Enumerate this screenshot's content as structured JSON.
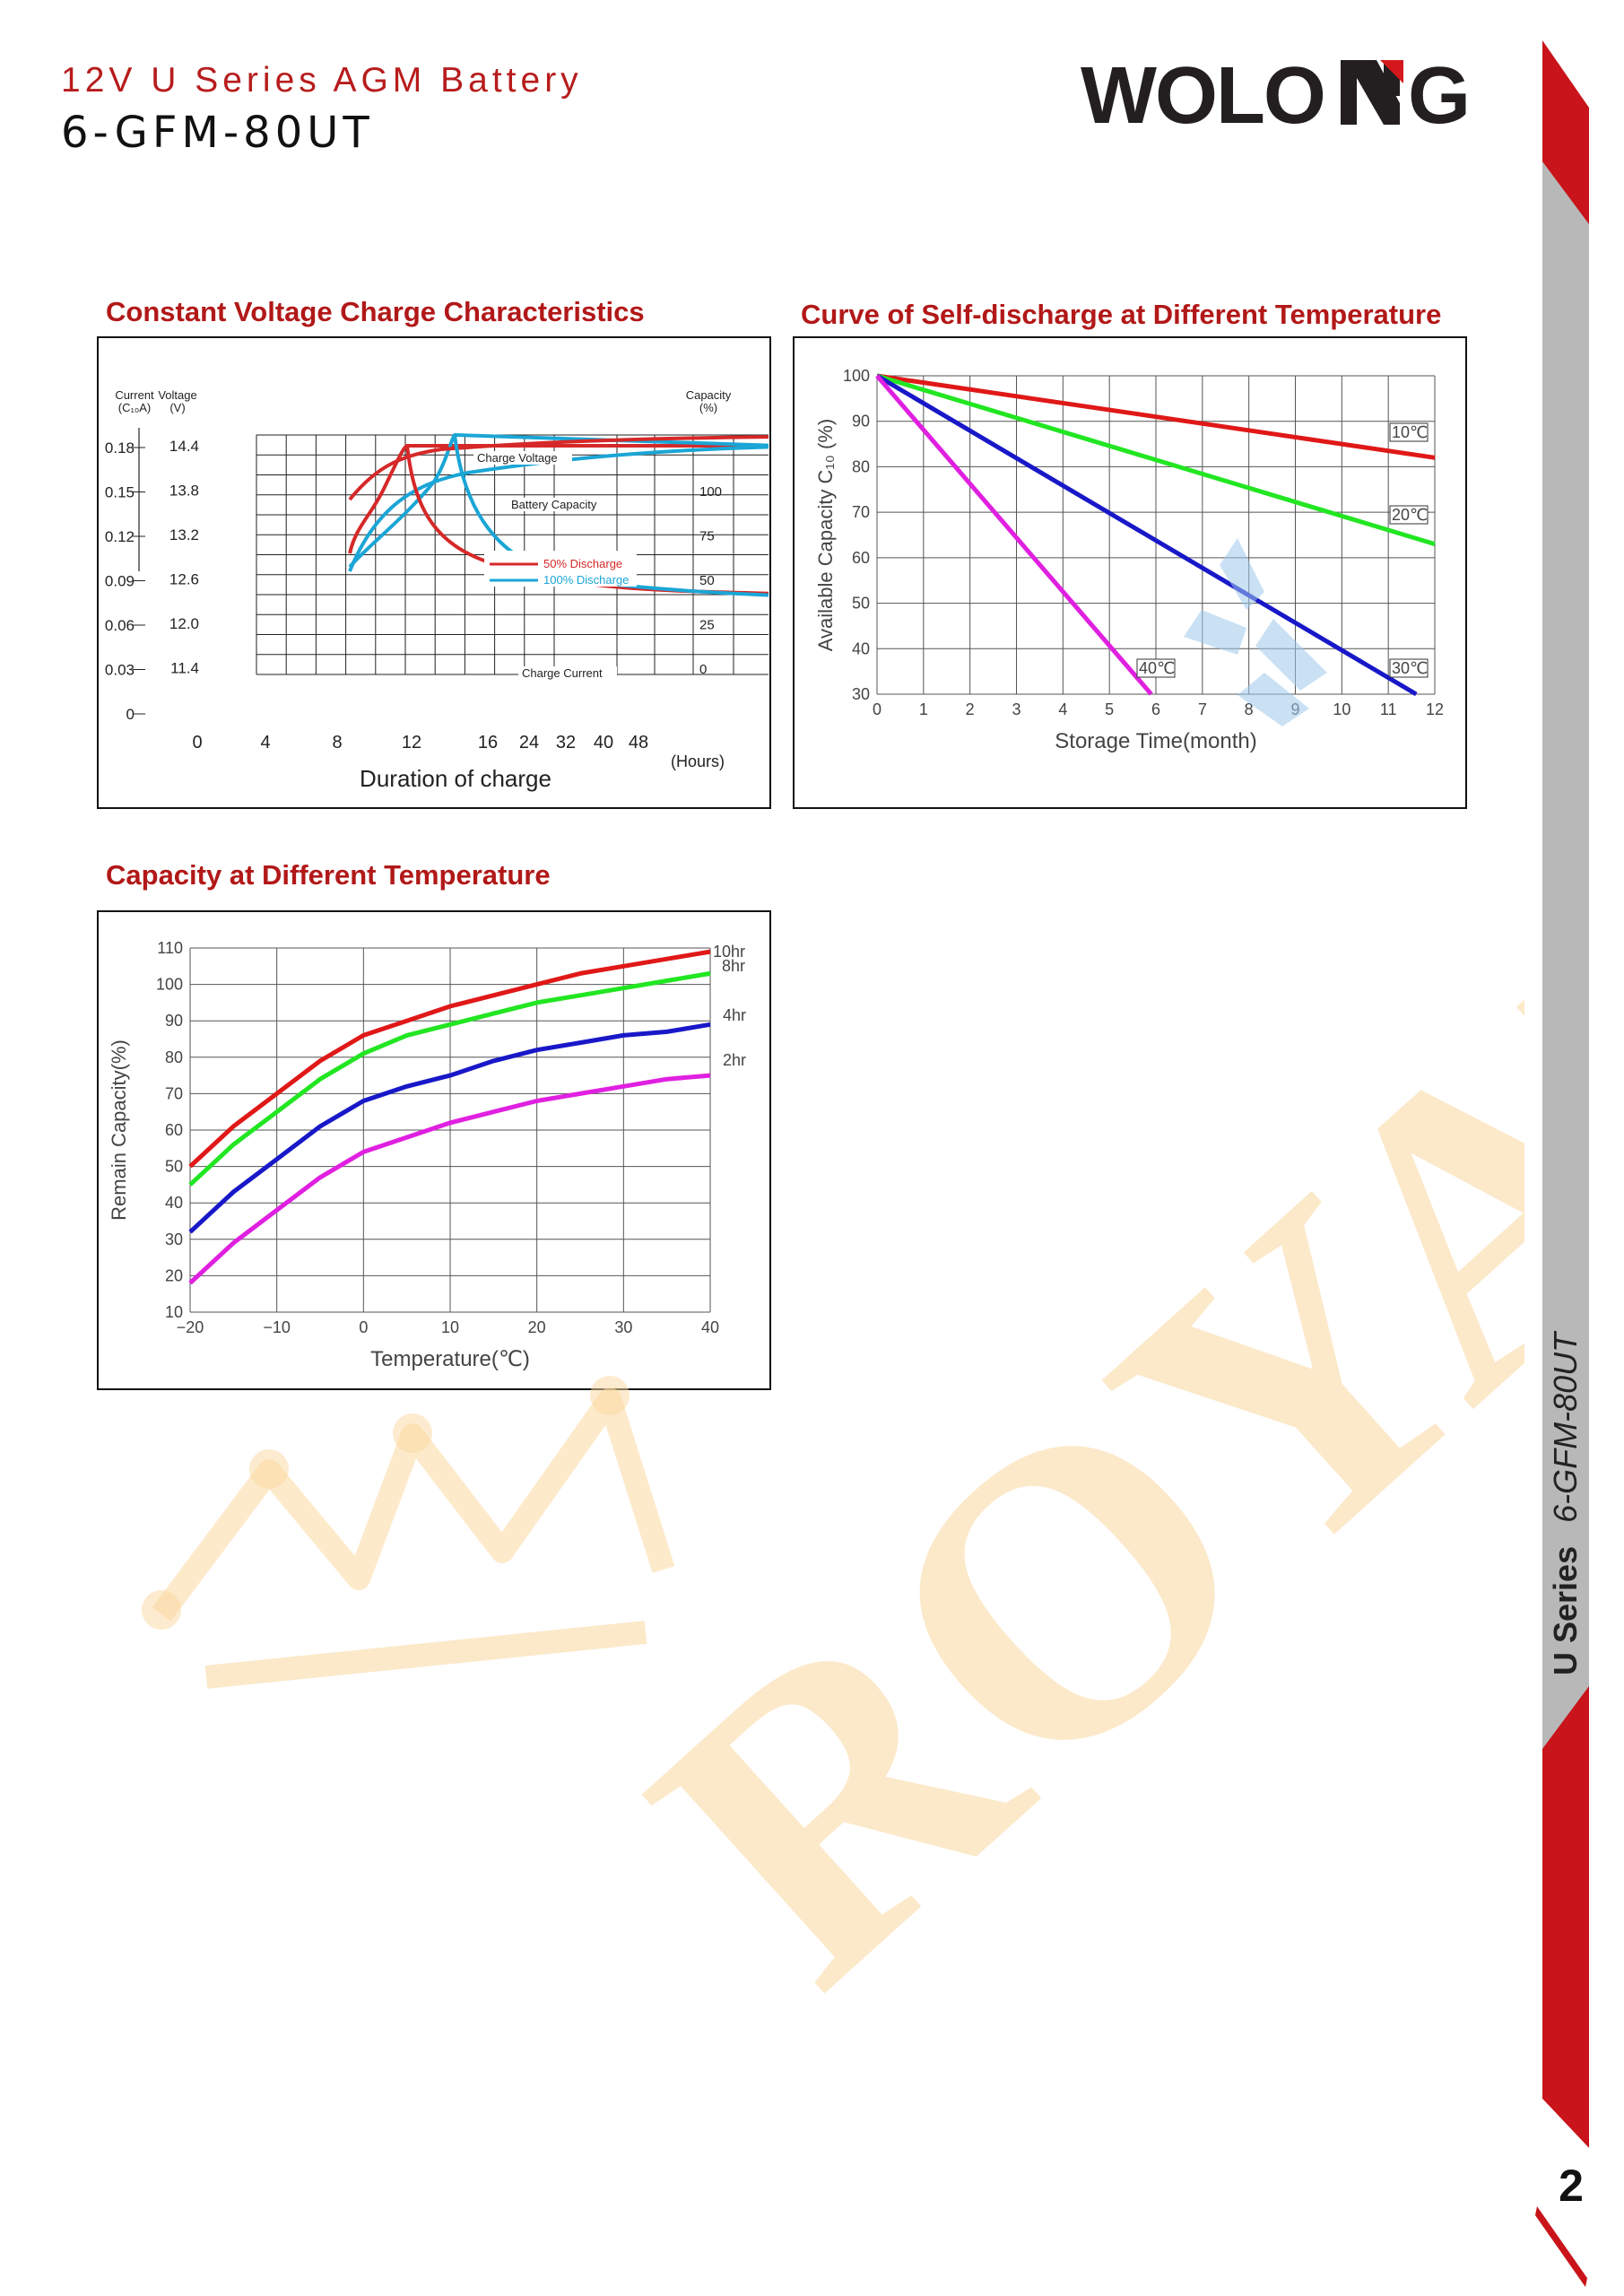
{
  "header": {
    "title": "12V U Series AGM Battery",
    "model": "6-GFM-80UT",
    "brand_logo": "WOLONG",
    "accent_color": "#b71c1c"
  },
  "watermark": {
    "text": "ROYALPV",
    "color": "#fbd8a0",
    "blue_color": "#9fc9ec"
  },
  "side": {
    "series_label": "U Series",
    "model_label": "6-GFM-80UT",
    "page_number": "2"
  },
  "charts": [
    {
      "id": "charge",
      "section_title": "Constant Voltage Charge Characteristics",
      "xlabel": "Duration of charge",
      "x_unit": "(Hours)",
      "xticks": [
        "0",
        "4",
        "8",
        "12",
        "16",
        "24",
        "32",
        "40",
        "48"
      ],
      "current_axis": {
        "label": [
          "Current",
          "(C₁₀A)"
        ],
        "ticks": [
          "0.18",
          "0.15",
          "0.12",
          "0.09",
          "0.06",
          "0.03",
          "0"
        ]
      },
      "voltage_axis": {
        "label": [
          "Voltage",
          "(V)"
        ],
        "ticks": [
          "14.4",
          "13.8",
          "13.2",
          "12.6",
          "12.0",
          "11.4"
        ]
      },
      "capacity_axis": {
        "label": [
          "Capacity",
          "(%)"
        ],
        "ticks": [
          "100",
          "75",
          "50",
          "25",
          "0"
        ]
      },
      "annotations": [
        "Charge Voltage",
        "Battery Capacity",
        "Charge Current"
      ],
      "legend": [
        {
          "name": "50% Discharge",
          "color": "#d62828"
        },
        {
          "name": "100% Discharge",
          "color": "#1aa6d6"
        }
      ]
    },
    {
      "id": "self_discharge",
      "section_title": "Curve of Self-discharge at Different Temperature",
      "xlabel": "Storage Time(month)",
      "ylabel": "Available Capacity C₁₀ (%)",
      "xticks": [
        "0",
        "1",
        "2",
        "3",
        "4",
        "5",
        "6",
        "7",
        "8",
        "9",
        "10",
        "11",
        "12"
      ],
      "yticks": [
        "30",
        "40",
        "50",
        "60",
        "70",
        "80",
        "90",
        "100"
      ],
      "xlim": [
        0,
        12
      ],
      "ylim": [
        30,
        100
      ],
      "series": [
        {
          "name": "10℃",
          "color": "#e01818",
          "x": [
            0,
            12
          ],
          "y": [
            100,
            82
          ]
        },
        {
          "name": "20℃",
          "color": "#22e622",
          "x": [
            0,
            12
          ],
          "y": [
            100,
            63
          ]
        },
        {
          "name": "30℃",
          "color": "#1818c8",
          "x": [
            0,
            11.6
          ],
          "y": [
            100,
            30
          ]
        },
        {
          "name": "40℃",
          "color": "#e020e0",
          "x": [
            0,
            5.9
          ],
          "y": [
            100,
            30
          ]
        }
      ]
    },
    {
      "id": "capacity_temp",
      "section_title": "Capacity at Different Temperature",
      "xlabel": "Temperature(℃)",
      "ylabel": "Remain Capacity(%)",
      "xticks": [
        "−20",
        "−10",
        "0",
        "10",
        "20",
        "30",
        "40"
      ],
      "yticks": [
        "10",
        "20",
        "30",
        "40",
        "50",
        "60",
        "70",
        "80",
        "90",
        "100",
        "110"
      ],
      "xlim": [
        -20,
        40
      ],
      "ylim": [
        10,
        110
      ],
      "series": [
        {
          "name": "10hr",
          "color": "#e01818",
          "x": [
            -20,
            -15,
            -10,
            -5,
            0,
            5,
            10,
            15,
            20,
            25,
            30,
            35,
            40
          ],
          "y": [
            50,
            61,
            70,
            79,
            86,
            90,
            94,
            97,
            100,
            103,
            105,
            107,
            109
          ]
        },
        {
          "name": "8hr",
          "color": "#22e622",
          "x": [
            -20,
            -15,
            -10,
            -5,
            0,
            5,
            10,
            15,
            20,
            25,
            30,
            35,
            40
          ],
          "y": [
            45,
            56,
            65,
            74,
            81,
            86,
            89,
            92,
            95,
            97,
            99,
            101,
            103
          ]
        },
        {
          "name": "4hr",
          "color": "#1818c8",
          "x": [
            -20,
            -15,
            -10,
            -5,
            0,
            5,
            10,
            15,
            20,
            25,
            30,
            35,
            40
          ],
          "y": [
            32,
            43,
            52,
            61,
            68,
            72,
            75,
            79,
            82,
            84,
            86,
            87,
            89
          ]
        },
        {
          "name": "2hr",
          "color": "#e020e0",
          "x": [
            -20,
            -15,
            -10,
            -5,
            0,
            5,
            10,
            15,
            20,
            25,
            30,
            35,
            40
          ],
          "y": [
            18,
            29,
            38,
            47,
            54,
            58,
            62,
            65,
            68,
            70,
            72,
            74,
            75
          ]
        }
      ]
    }
  ]
}
